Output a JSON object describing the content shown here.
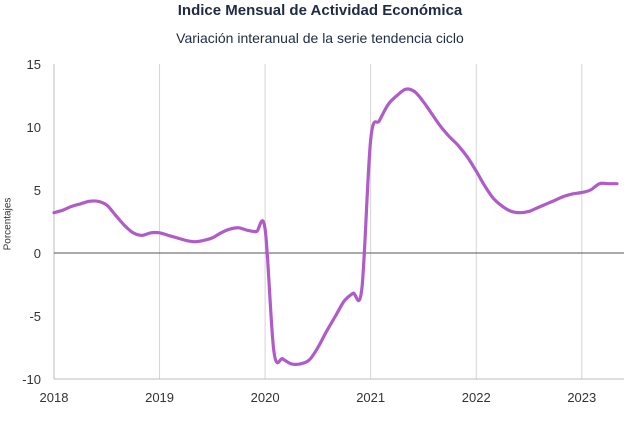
{
  "chart_data": {
    "type": "line",
    "title": "Indice Mensual de  Actividad Económica",
    "subtitle": "Variación interanual de la serie tendencia ciclo",
    "ylabel": "Porcentajes",
    "xlabel": "",
    "ylim": [
      -10,
      15
    ],
    "xlim": [
      2018.0,
      2023.4
    ],
    "yticks": [
      {
        "value": 15,
        "label": "15"
      },
      {
        "value": 10,
        "label": "10"
      },
      {
        "value": 5,
        "label": "5"
      },
      {
        "value": 0,
        "label": "0"
      },
      {
        "value": -5,
        "label": "-5"
      },
      {
        "value": -10,
        "label": "-10"
      }
    ],
    "xticks": [
      {
        "value": 2018,
        "label": "2018"
      },
      {
        "value": 2019,
        "label": "2019"
      },
      {
        "value": 2020,
        "label": "2020"
      },
      {
        "value": 2021,
        "label": "2021"
      },
      {
        "value": 2022,
        "label": "2022"
      },
      {
        "value": 2023,
        "label": "2023"
      }
    ],
    "grid": "vertical",
    "line_color": "#b05cc8",
    "negative_tick_color": "#e02020",
    "series": [
      {
        "x": [
          2018.0,
          2018.083,
          2018.167,
          2018.25,
          2018.333,
          2018.417,
          2018.5,
          2018.583,
          2018.667,
          2018.75,
          2018.833,
          2018.917,
          2019.0,
          2019.083,
          2019.167,
          2019.25,
          2019.333,
          2019.417,
          2019.5,
          2019.583,
          2019.667,
          2019.75,
          2019.833,
          2019.917,
          2020.0,
          2020.083,
          2020.167,
          2020.25,
          2020.333,
          2020.417,
          2020.5,
          2020.583,
          2020.667,
          2020.75,
          2020.833,
          2020.917,
          2021.0,
          2021.083,
          2021.167,
          2021.25,
          2021.333,
          2021.417,
          2021.5,
          2021.583,
          2021.667,
          2021.75,
          2021.833,
          2021.917,
          2022.0,
          2022.083,
          2022.167,
          2022.25,
          2022.333,
          2022.417,
          2022.5,
          2022.583,
          2022.667,
          2022.75,
          2022.833,
          2022.917,
          2023.0,
          2023.083,
          2023.167,
          2023.25,
          2023.333
        ],
        "values": [
          3.2,
          3.4,
          3.7,
          3.9,
          4.1,
          4.1,
          3.8,
          3.0,
          2.2,
          1.6,
          1.4,
          1.6,
          1.6,
          1.4,
          1.2,
          1.0,
          0.9,
          1.0,
          1.2,
          1.6,
          1.9,
          2.0,
          1.8,
          1.7,
          1.9,
          -7.8,
          -8.4,
          -8.8,
          -8.8,
          -8.5,
          -7.5,
          -6.2,
          -5.0,
          -3.8,
          -3.2,
          -2.8,
          9.0,
          10.5,
          11.8,
          12.5,
          13.0,
          12.8,
          12.0,
          11.0,
          10.0,
          9.2,
          8.5,
          7.6,
          6.5,
          5.3,
          4.3,
          3.7,
          3.3,
          3.2,
          3.3,
          3.6,
          3.9,
          4.2,
          4.5,
          4.7,
          4.8,
          5.0,
          5.5,
          5.5,
          5.5
        ]
      }
    ]
  }
}
